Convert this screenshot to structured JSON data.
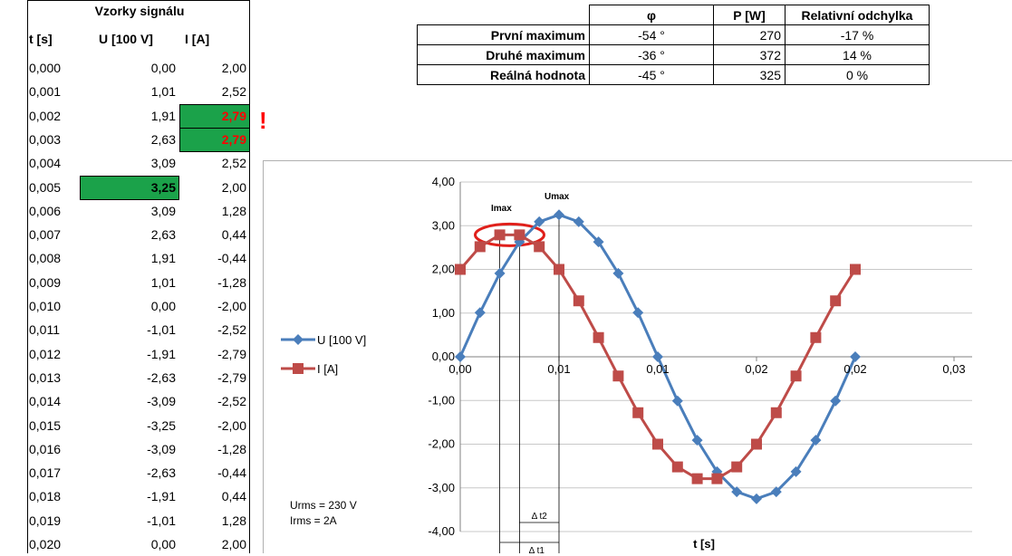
{
  "samples": {
    "title": "Vzorky signálu",
    "headers": [
      "t [s]",
      "U [100 V]",
      "I [A]"
    ],
    "rows": [
      [
        "0,000",
        "0,00",
        "2,00"
      ],
      [
        "0,001",
        "1,01",
        "2,52"
      ],
      [
        "0,002",
        "1,91",
        "2,79"
      ],
      [
        "0,003",
        "2,63",
        "2,79"
      ],
      [
        "0,004",
        "3,09",
        "2,52"
      ],
      [
        "0,005",
        "3,25",
        "2,00"
      ],
      [
        "0,006",
        "3,09",
        "1,28"
      ],
      [
        "0,007",
        "2,63",
        "0,44"
      ],
      [
        "0,008",
        "1,91",
        "-0,44"
      ],
      [
        "0,009",
        "1,01",
        "-1,28"
      ],
      [
        "0,010",
        "0,00",
        "-2,00"
      ],
      [
        "0,011",
        "-1,01",
        "-2,52"
      ],
      [
        "0,012",
        "-1,91",
        "-2,79"
      ],
      [
        "0,013",
        "-2,63",
        "-2,79"
      ],
      [
        "0,014",
        "-3,09",
        "-2,52"
      ],
      [
        "0,015",
        "-3,25",
        "-2,00"
      ],
      [
        "0,016",
        "-3,09",
        "-1,28"
      ],
      [
        "0,017",
        "-2,63",
        "-0,44"
      ],
      [
        "0,018",
        "-1,91",
        "0,44"
      ],
      [
        "0,019",
        "-1,01",
        "1,28"
      ],
      [
        "0,020",
        "0,00",
        "2,00"
      ]
    ],
    "alert_mark": "!",
    "highlight_color": "#1ba24a",
    "alert_color": "#ff0000"
  },
  "summary": {
    "headers": [
      "",
      "φ",
      "P [W]",
      "Relativní odchylka"
    ],
    "rows": [
      [
        "První maximum",
        "-54  °",
        "270",
        "-17 %"
      ],
      [
        "Druhé maximum",
        "-36  °",
        "372",
        "14 %"
      ],
      [
        "Reálná hodnota",
        "-45  °",
        "325",
        "0 %"
      ]
    ]
  },
  "notes": {
    "urms": "Urms = 230 V",
    "irms": "Irms = 2A"
  },
  "chart_data": {
    "type": "line",
    "x": [
      0,
      0.001,
      0.002,
      0.003,
      0.004,
      0.005,
      0.006,
      0.007,
      0.008,
      0.009,
      0.01,
      0.011,
      0.012,
      0.013,
      0.014,
      0.015,
      0.016,
      0.017,
      0.018,
      0.019,
      0.02
    ],
    "series": [
      {
        "name": "U [100 V]",
        "color": "#4a7ebb",
        "marker": "diamond",
        "values": [
          0,
          1.01,
          1.91,
          2.63,
          3.09,
          3.25,
          3.09,
          2.63,
          1.91,
          1.01,
          0,
          -1.01,
          -1.91,
          -2.63,
          -3.09,
          -3.25,
          -3.09,
          -2.63,
          -1.91,
          -1.01,
          0
        ]
      },
      {
        "name": "I [A]",
        "color": "#be4b48",
        "marker": "square",
        "values": [
          2.0,
          2.52,
          2.79,
          2.79,
          2.52,
          2.0,
          1.28,
          0.44,
          -0.44,
          -1.28,
          -2.0,
          -2.52,
          -2.79,
          -2.79,
          -2.52,
          -2.0,
          -1.28,
          -0.44,
          0.44,
          1.28,
          2.0
        ]
      }
    ],
    "xlabel": "t [s]",
    "ylabel": "",
    "xlim": [
      0,
      0.025
    ],
    "ylim": [
      -4,
      4
    ],
    "ytick_labels": [
      "4,00",
      "3,00",
      "2,00",
      "1,00",
      "0,00",
      "-1,00",
      "-2,00",
      "-3,00",
      "-4,00"
    ],
    "xtick_labels": [
      "0,00",
      "0,01",
      "0,01",
      "0,02",
      "0,02",
      "0,03"
    ],
    "grid": true,
    "legend": "left",
    "annotations": {
      "imax": "Imax",
      "umax": "Umax",
      "dt1": "Δ t1",
      "dt2": "Δ t2"
    }
  }
}
